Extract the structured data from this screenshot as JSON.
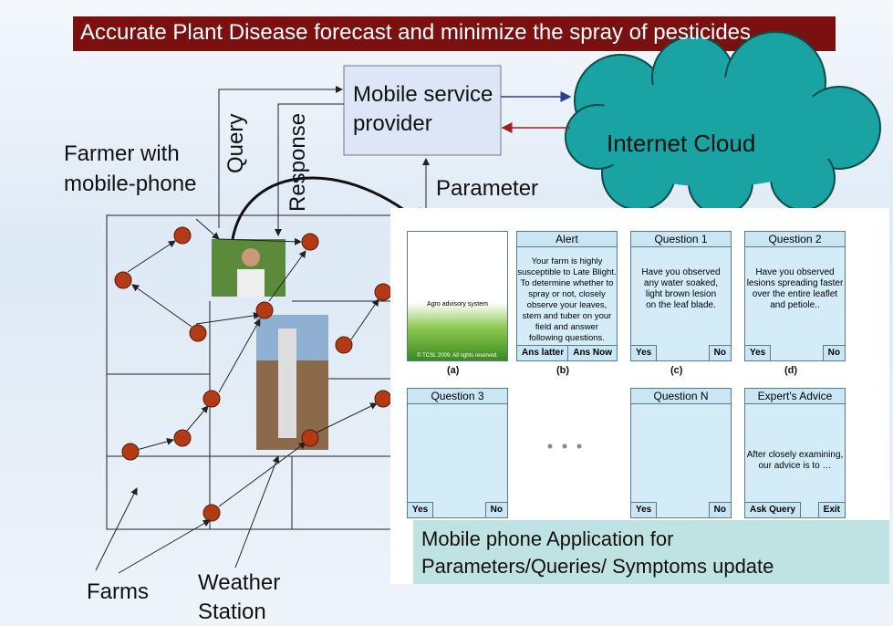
{
  "title": "Accurate Plant Disease forecast and minimize the spray of pesticides",
  "mobile_service_provider": [
    "Mobile service",
    "provider"
  ],
  "internet_cloud": "Internet Cloud",
  "arrow_labels": {
    "query": "Query",
    "response": "Response",
    "parameter": "Parameter"
  },
  "farmer_label": [
    "Farmer with",
    "mobile-phone"
  ],
  "farms_label": "Farms",
  "weather_station_label": [
    "Weather",
    "Station"
  ],
  "screens": [
    {
      "body": [
        "Agro advisory system"
      ],
      "footer": "© TCSL 2009. All rights reserved.",
      "caption": "(a)"
    },
    {
      "title": "Alert",
      "body": [
        "Your farm is highly",
        "susceptible to Late Blight.",
        "To determine whether to",
        "spray or not, closely",
        "observe your  leaves,",
        "stem and tuber on your",
        "field and answer",
        "following questions."
      ],
      "buttons": [
        "Ans latter",
        "Ans Now"
      ],
      "caption": "(b)"
    },
    {
      "title": "Question 1",
      "body": [
        "Have you observed",
        "any water soaked,",
        "light brown lesion",
        "on the leaf blade."
      ],
      "buttons": [
        "Yes",
        "No"
      ],
      "caption": "(c)"
    },
    {
      "title": "Question 2",
      "body": [
        "Have you observed",
        "lesions spreading faster",
        "over the entire leaflet",
        "and petiole.."
      ],
      "buttons": [
        "Yes",
        "No"
      ],
      "caption": "(d)"
    },
    {
      "title": "Question 3",
      "body": [],
      "buttons": [
        "Yes",
        "No"
      ]
    },
    {
      "title": "Question N",
      "body": [],
      "buttons": [
        "Yes",
        "No"
      ]
    },
    {
      "title": "Expert's Advice",
      "body": [
        "After closely examining,",
        "our advice is to …"
      ],
      "buttons": [
        "Ask Query",
        "Exit"
      ]
    }
  ],
  "app_caption": [
    "Mobile phone Application for",
    "Parameters/Queries/ Symptoms update"
  ]
}
